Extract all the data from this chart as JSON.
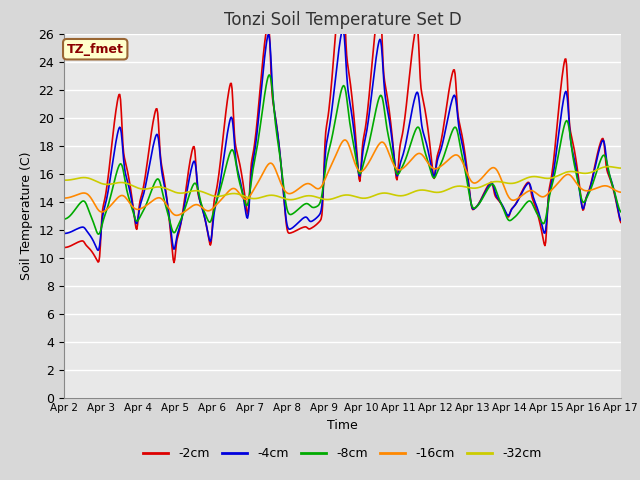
{
  "title": "Tonzi Soil Temperature Set D",
  "xlabel": "Time",
  "ylabel": "Soil Temperature (C)",
  "annotation": "TZ_fmet",
  "ylim": [
    0,
    26
  ],
  "yticks": [
    0,
    2,
    4,
    6,
    8,
    10,
    12,
    14,
    16,
    18,
    20,
    22,
    24,
    26
  ],
  "x_labels": [
    "Apr 2",
    "Apr 3",
    "Apr 4",
    "Apr 5",
    "Apr 6",
    "Apr 7",
    "Apr 8",
    "Apr 9",
    "Apr 10",
    "Apr 11",
    "Apr 12",
    "Apr 13",
    "Apr 14",
    "Apr 15",
    "Apr 16",
    "Apr 17"
  ],
  "series": {
    "-2cm": {
      "color": "#dd0000",
      "linewidth": 1.2
    },
    "-4cm": {
      "color": "#0000dd",
      "linewidth": 1.2
    },
    "-8cm": {
      "color": "#00aa00",
      "linewidth": 1.2
    },
    "-16cm": {
      "color": "#ff8800",
      "linewidth": 1.2
    },
    "-32cm": {
      "color": "#cccc00",
      "linewidth": 1.2
    }
  },
  "legend_order": [
    "-2cm",
    "-4cm",
    "-8cm",
    "-16cm",
    "-32cm"
  ],
  "plot_bg_color": "#e8e8e8",
  "grid_color": "#ffffff",
  "title_fontsize": 12,
  "n_days": 15,
  "points_per_day": 48
}
